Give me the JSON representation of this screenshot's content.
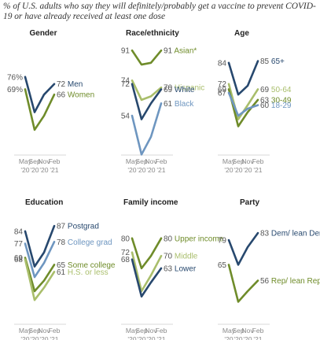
{
  "subtitle": "% of U.S. adults who say they will definitely/probably get a vaccine to prevent COVID-19 or have already received at least one dose",
  "colors": {
    "navy": "#27486E",
    "steel": "#6E96C0",
    "olive": "#6F8C2A",
    "light_olive": "#A9BE6B"
  },
  "chart_data": [
    {
      "type": "line",
      "title": "Gender",
      "x": [
        "May '20",
        "Sep '20",
        "Nov '20",
        "Feb '21"
      ],
      "ylim": [
        40,
        95
      ],
      "series": [
        {
          "name": "Men",
          "values": [
            76,
            56,
            66,
            72
          ],
          "color": "navy",
          "start_label": "76%",
          "end_label": "72"
        },
        {
          "name": "Women",
          "values": [
            69,
            46,
            54,
            66
          ],
          "color": "olive",
          "start_label": "69%",
          "end_label": "66"
        }
      ]
    },
    {
      "type": "line",
      "title": "Race/ethnicity",
      "x": [
        "May '20",
        "Sep '20",
        "Nov '20",
        "Feb '21"
      ],
      "ylim": [
        40,
        95
      ],
      "series": [
        {
          "name": "Asian*",
          "values": [
            91,
            83,
            84,
            91
          ],
          "color": "olive",
          "start_label": "91",
          "end_label": "91"
        },
        {
          "name": "Hispanic",
          "values": [
            74,
            63,
            65,
            70
          ],
          "color": "light_olive",
          "start_label": "74",
          "end_label": "70"
        },
        {
          "name": "White",
          "values": [
            72,
            52,
            61,
            69
          ],
          "color": "navy",
          "start_label": "72",
          "end_label": "69"
        },
        {
          "name": "Black",
          "values": [
            54,
            32,
            42,
            61
          ],
          "color": "steel",
          "start_label": "54",
          "end_label": "61"
        }
      ]
    },
    {
      "type": "line",
      "title": "Age",
      "x": [
        "May '20",
        "Sep '20",
        "Nov '20",
        "Feb '21"
      ],
      "ylim": [
        40,
        95
      ],
      "series": [
        {
          "name": "65+",
          "values": [
            84,
            66,
            71,
            85
          ],
          "color": "navy",
          "start_label": "84",
          "end_label": "85"
        },
        {
          "name": "50-64",
          "values": [
            72,
            52,
            60,
            69
          ],
          "color": "light_olive",
          "start_label": "72",
          "end_label": "69"
        },
        {
          "name": "30-49",
          "values": [
            69,
            48,
            56,
            63
          ],
          "color": "olive",
          "start_label": "69",
          "end_label": "63"
        },
        {
          "name": "18-29",
          "values": [
            67,
            54,
            58,
            60
          ],
          "color": "steel",
          "start_label": "67",
          "end_label": "60"
        }
      ]
    },
    {
      "type": "line",
      "title": "Education",
      "x": [
        "May '20",
        "Sep '20",
        "Nov '20",
        "Feb '21"
      ],
      "ylim": [
        40,
        95
      ],
      "series": [
        {
          "name": "Postgrad",
          "values": [
            84,
            64,
            72,
            87
          ],
          "color": "navy",
          "start_label": "84",
          "end_label": "87"
        },
        {
          "name": "College grad",
          "values": [
            77,
            58,
            66,
            78
          ],
          "color": "steel",
          "start_label": "77",
          "end_label": "78"
        },
        {
          "name": "Some college",
          "values": [
            69,
            50,
            56,
            65
          ],
          "color": "olive",
          "start_label": "69",
          "end_label": "65"
        },
        {
          "name": "H.S. or less",
          "values": [
            68,
            45,
            52,
            61
          ],
          "color": "light_olive",
          "start_label": "68",
          "end_label": "61"
        }
      ]
    },
    {
      "type": "line",
      "title": "Family income",
      "x": [
        "May '20",
        "Sep '20",
        "Nov '20",
        "Feb '21"
      ],
      "ylim": [
        40,
        95
      ],
      "series": [
        {
          "name": "Upper income",
          "values": [
            80,
            63,
            70,
            80
          ],
          "color": "olive",
          "start_label": "80",
          "end_label": "80"
        },
        {
          "name": "Middle",
          "values": [
            72,
            50,
            59,
            70
          ],
          "color": "light_olive",
          "start_label": "72",
          "end_label": "70"
        },
        {
          "name": "Lower",
          "values": [
            68,
            47,
            55,
            63
          ],
          "color": "navy",
          "start_label": "68",
          "end_label": "63"
        }
      ]
    },
    {
      "type": "line",
      "title": "Party",
      "x": [
        "May '20",
        "Sep '20",
        "Nov '20",
        "Feb '21"
      ],
      "ylim": [
        40,
        95
      ],
      "series": [
        {
          "name": "Dem/ lean Dem",
          "values": [
            79,
            65,
            75,
            83
          ],
          "color": "navy",
          "start_label": "79",
          "end_label": "83"
        },
        {
          "name": "Rep/ lean Rep",
          "values": [
            65,
            44,
            50,
            56
          ],
          "color": "olive",
          "start_label": "65",
          "end_label": "56"
        }
      ]
    }
  ]
}
